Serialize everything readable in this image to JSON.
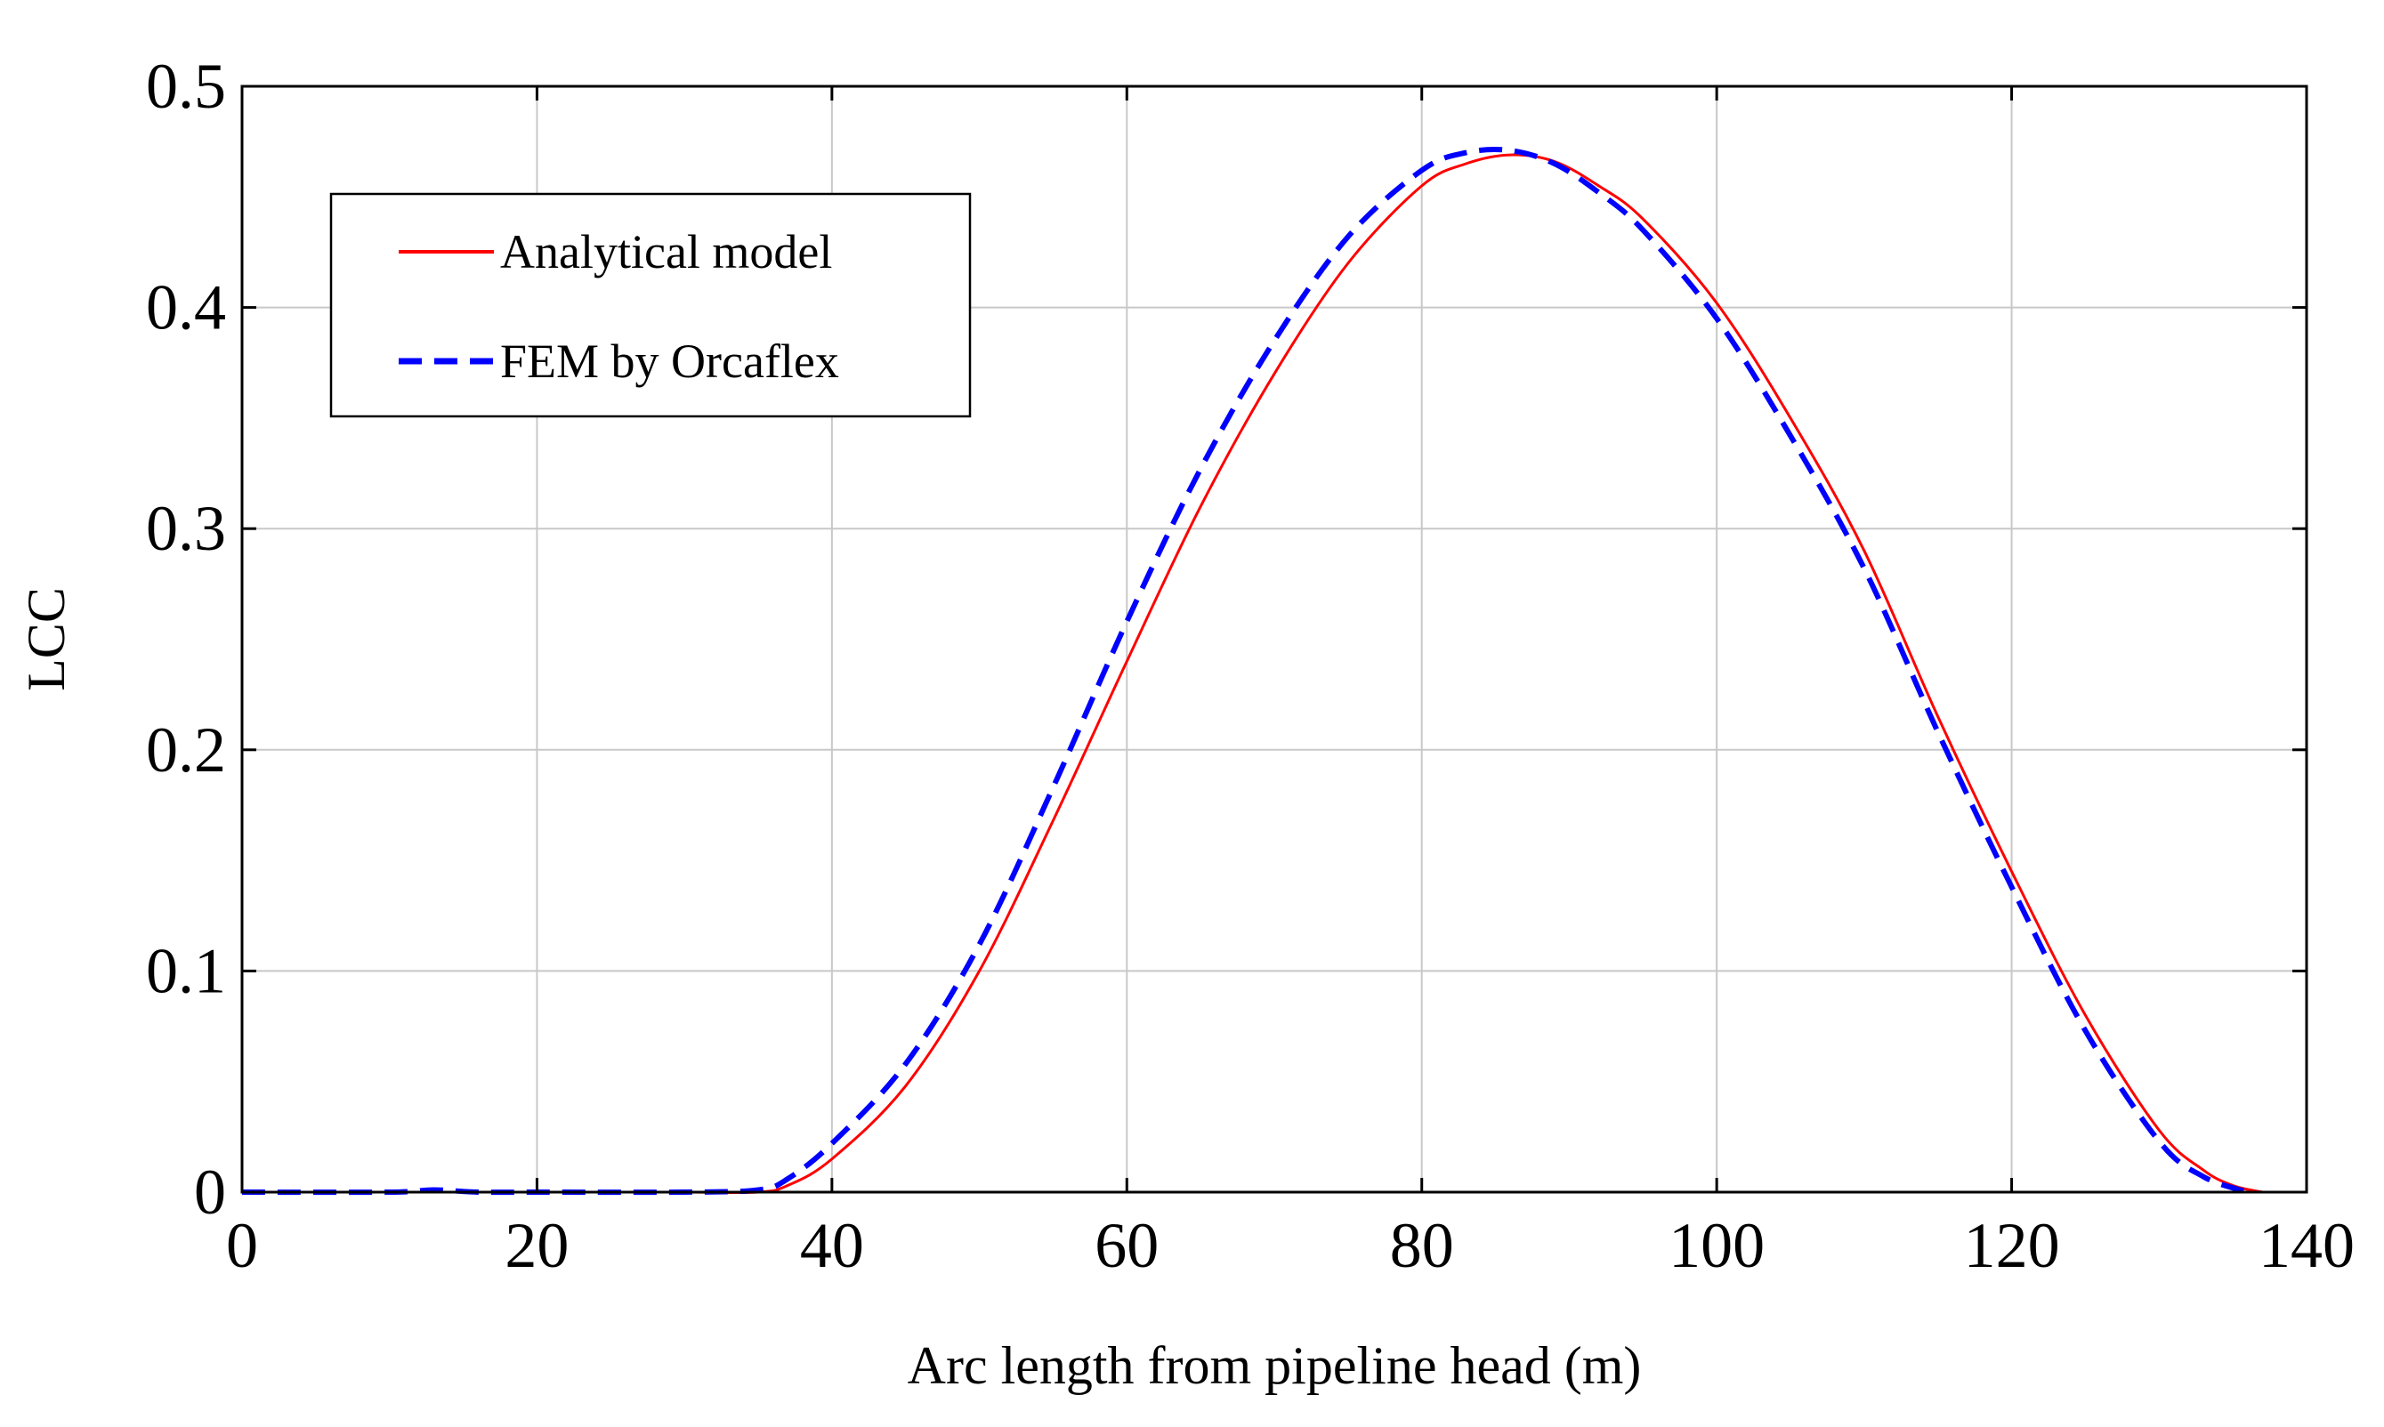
{
  "chart_data": {
    "type": "line",
    "title": "",
    "xlabel": "Arc length from pipeline head (m)",
    "ylabel": "LCC",
    "xlim": [
      0,
      140
    ],
    "ylim": [
      0,
      0.5
    ],
    "xticks": [
      0,
      20,
      40,
      60,
      80,
      100,
      120,
      140
    ],
    "yticks": [
      0,
      0.1,
      0.2,
      0.3,
      0.4,
      0.5
    ],
    "xtick_labels": [
      "0",
      "20",
      "40",
      "60",
      "80",
      "100",
      "120",
      "140"
    ],
    "ytick_labels": [
      "0",
      "0.1",
      "0.2",
      "0.3",
      "0.4",
      "0.5"
    ],
    "grid": true,
    "legend_position": "top-left",
    "series": [
      {
        "name": "Analytical model",
        "color": "#ff0000",
        "style": "solid",
        "x": [
          0,
          10,
          20,
          30,
          35,
          37,
          40,
          45,
          50,
          55,
          60,
          65,
          70,
          75,
          80,
          83,
          86,
          89,
          92,
          95,
          100,
          105,
          110,
          115,
          120,
          125,
          130,
          133,
          135,
          137
        ],
        "y": [
          0,
          0,
          0,
          0,
          0,
          0.003,
          0.015,
          0.048,
          0.1,
          0.168,
          0.24,
          0.31,
          0.37,
          0.42,
          0.455,
          0.465,
          0.469,
          0.466,
          0.455,
          0.44,
          0.402,
          0.35,
          0.29,
          0.215,
          0.145,
          0.08,
          0.028,
          0.01,
          0.003,
          0
        ]
      },
      {
        "name": "FEM by Orcaflex",
        "color": "#0000ff",
        "style": "dashed",
        "x": [
          0,
          10,
          13,
          16,
          20,
          30,
          35,
          37,
          40,
          45,
          50,
          55,
          60,
          65,
          70,
          75,
          80,
          83,
          86,
          89,
          92,
          95,
          100,
          105,
          110,
          115,
          120,
          125,
          130,
          133,
          136
        ],
        "y": [
          0,
          0,
          0.001,
          0,
          0,
          0,
          0.001,
          0.006,
          0.022,
          0.058,
          0.112,
          0.183,
          0.258,
          0.327,
          0.385,
          0.432,
          0.462,
          0.47,
          0.471,
          0.465,
          0.452,
          0.435,
          0.395,
          0.342,
          0.282,
          0.208,
          0.138,
          0.073,
          0.023,
          0.007,
          0
        ]
      }
    ]
  }
}
